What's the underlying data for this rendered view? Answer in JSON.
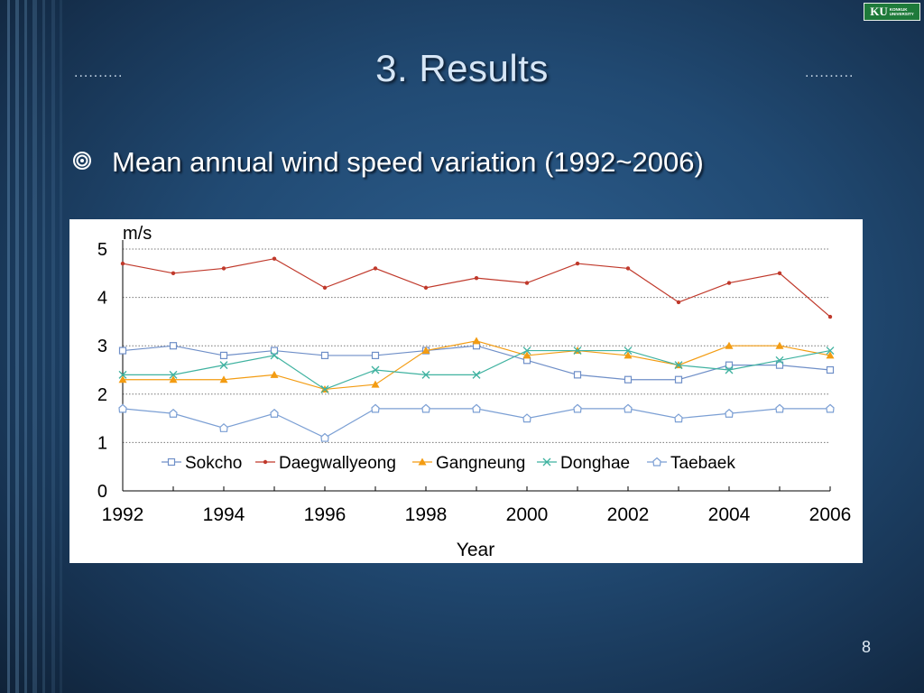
{
  "slide": {
    "title": "3. Results",
    "dots_left": "..........",
    "dots_right": "..........",
    "bullet": "Mean annual wind speed variation (1992~2006)",
    "page_number": "8",
    "logo_main": "KU",
    "logo_sub_1": "KONKUK",
    "logo_sub_2": "UNIVERSITY"
  },
  "colors": {
    "background": "#214a73",
    "title": "#d6e6f6",
    "logo_green": "#1e7a3a",
    "Sokcho": "#6f8fc8",
    "Daegwallyeong": "#c0392b",
    "Gangneung": "#f39c12",
    "Donghae": "#3fb2a0",
    "Taebaek": "#7b9fd4"
  },
  "chart_data": {
    "type": "line",
    "ylabel": "m/s",
    "xlabel": "Year",
    "x": [
      1992,
      1993,
      1994,
      1995,
      1996,
      1997,
      1998,
      1999,
      2000,
      2001,
      2002,
      2003,
      2004,
      2005,
      2006
    ],
    "xlim": [
      1992,
      2006
    ],
    "ylim": [
      0,
      5
    ],
    "x_ticks": [
      "1992",
      "1994",
      "1996",
      "1998",
      "2000",
      "2002",
      "2004",
      "2006"
    ],
    "y_ticks": [
      "0",
      "1",
      "2",
      "3",
      "4",
      "5"
    ],
    "grid": "horizontal dotted",
    "legend_position": "bottom-inside",
    "series": [
      {
        "name": "Sokcho",
        "marker": "square",
        "values": [
          2.9,
          3.0,
          2.8,
          2.9,
          2.8,
          2.8,
          2.9,
          3.0,
          2.7,
          2.4,
          2.3,
          2.3,
          2.6,
          2.6,
          2.5
        ]
      },
      {
        "name": "Daegwallyeong",
        "marker": "dot",
        "values": [
          4.7,
          4.5,
          4.6,
          4.8,
          4.2,
          4.6,
          4.2,
          4.4,
          4.3,
          4.7,
          4.6,
          3.9,
          4.3,
          4.5,
          3.6
        ]
      },
      {
        "name": "Gangneung",
        "marker": "triangle",
        "values": [
          2.3,
          2.3,
          2.3,
          2.4,
          2.1,
          2.2,
          2.9,
          3.1,
          2.8,
          2.9,
          2.8,
          2.6,
          3.0,
          3.0,
          2.8
        ]
      },
      {
        "name": "Donghae",
        "marker": "x",
        "values": [
          2.4,
          2.4,
          2.6,
          2.8,
          2.1,
          2.5,
          2.4,
          2.4,
          2.9,
          2.9,
          2.9,
          2.6,
          2.5,
          2.7,
          2.9
        ]
      },
      {
        "name": "Taebaek",
        "marker": "pentagon",
        "values": [
          1.7,
          1.6,
          1.3,
          1.6,
          1.1,
          1.7,
          1.7,
          1.7,
          1.5,
          1.7,
          1.7,
          1.5,
          1.6,
          1.7,
          1.7
        ]
      }
    ]
  }
}
